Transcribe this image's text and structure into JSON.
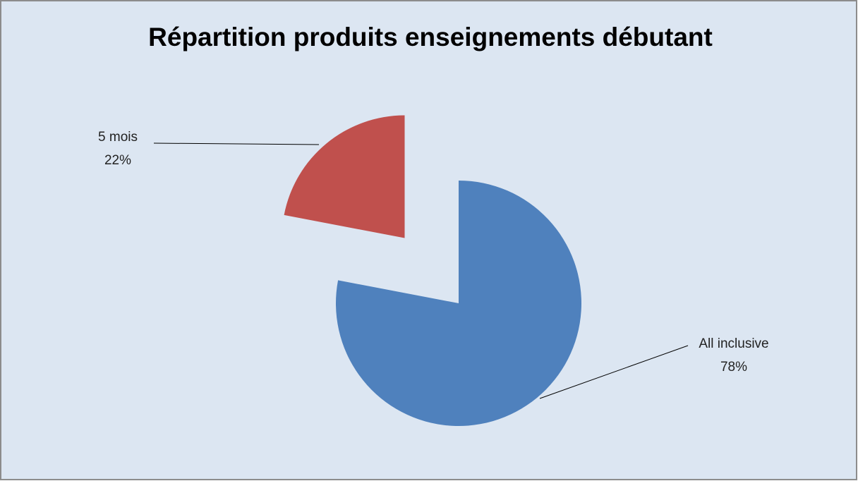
{
  "chart_data": {
    "type": "pie",
    "title": "Répartition produits enseignements débutant",
    "categories": [
      "All inclusive",
      "5 mois"
    ],
    "values": [
      78,
      22
    ],
    "value_labels": [
      "78%",
      "22%"
    ],
    "colors": [
      "#4f81bd",
      "#c0504d"
    ]
  }
}
